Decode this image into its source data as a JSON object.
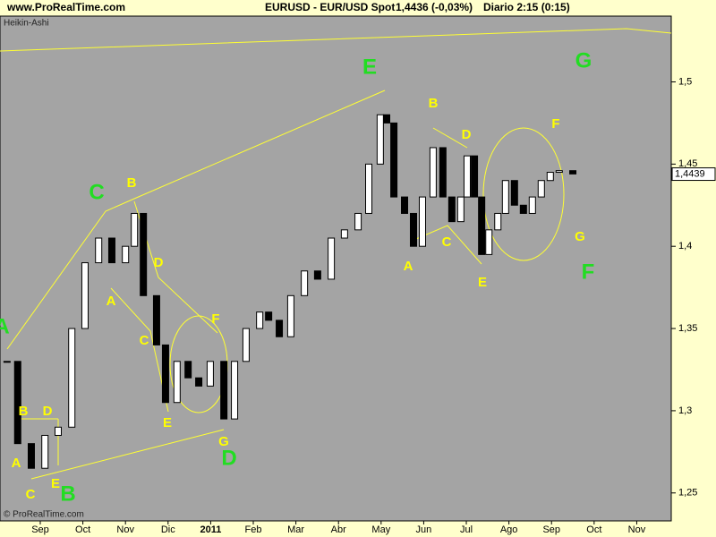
{
  "header": {
    "site": "www.ProRealTime.com",
    "instrument": "EURUSD - EUR/USD Spot",
    "quote": "1,4436 (-0,03%)",
    "period": "Diario  2:15 (0:15)"
  },
  "chart_data": {
    "type": "candlestick",
    "subtitle": "Heikin-Ashi",
    "footer": "© ProRealTime.com",
    "x": [
      -0.78,
      -0.53,
      -0.21,
      0.11,
      0.42,
      0.74,
      1.05,
      1.37,
      1.68,
      2.0,
      2.21,
      2.42,
      2.73,
      2.94,
      3.21,
      3.47,
      3.72,
      3.99,
      4.31,
      4.56,
      4.83,
      5.15,
      5.36,
      5.61,
      5.88,
      6.2,
      6.51,
      6.83,
      7.14,
      7.46,
      7.71,
      7.98,
      8.13,
      8.3,
      8.55,
      8.76,
      8.97,
      9.22,
      9.45,
      9.66,
      9.87,
      10.02,
      10.19,
      10.36,
      10.53,
      10.74,
      10.92,
      11.13,
      11.34,
      11.55,
      11.76,
      11.97,
      12.18,
      12.5
    ],
    "values": [
      1.33,
      1.28,
      1.265,
      1.285,
      1.29,
      1.35,
      1.39,
      1.405,
      1.39,
      1.4,
      1.42,
      1.37,
      1.34,
      1.305,
      1.33,
      1.32,
      1.315,
      1.33,
      1.295,
      1.33,
      1.35,
      1.36,
      1.355,
      1.345,
      1.37,
      1.385,
      1.38,
      1.405,
      1.41,
      1.42,
      1.45,
      1.48,
      1.475,
      1.43,
      1.42,
      1.4,
      1.43,
      1.46,
      1.43,
      1.415,
      1.43,
      1.455,
      1.43,
      1.395,
      1.41,
      1.42,
      1.44,
      1.425,
      1.42,
      1.43,
      1.44,
      1.445,
      1.446,
      1.444
    ],
    "last_value": 1.4439,
    "last_value_label": "1,4439",
    "xlim": [
      -0.945,
      14.81
    ],
    "ylim": [
      1.233,
      1.54
    ],
    "xticks": [
      {
        "value": 0,
        "label": "Sep"
      },
      {
        "value": 1,
        "label": "Oct"
      },
      {
        "value": 2,
        "label": "Nov"
      },
      {
        "value": 3,
        "label": "Dic"
      },
      {
        "value": 4,
        "label": "2011"
      },
      {
        "value": 5,
        "label": "Feb"
      },
      {
        "value": 6,
        "label": "Mar"
      },
      {
        "value": 7,
        "label": "Abr"
      },
      {
        "value": 8,
        "label": "May"
      },
      {
        "value": 9,
        "label": "Jun"
      },
      {
        "value": 10,
        "label": "Jul"
      },
      {
        "value": 11,
        "label": "Ago"
      },
      {
        "value": 12,
        "label": "Sep"
      },
      {
        "value": 13,
        "label": "Oct"
      },
      {
        "value": 14,
        "label": "Nov"
      }
    ],
    "yticks": [
      {
        "value": 1.25,
        "label": "1,25"
      },
      {
        "value": 1.3,
        "label": "1,3"
      },
      {
        "value": 1.35,
        "label": "1,35"
      },
      {
        "value": 1.4,
        "label": "1,4"
      },
      {
        "value": 1.45,
        "label": "1,45"
      },
      {
        "value": 1.5,
        "label": "1,5"
      }
    ],
    "annotations": [
      {
        "text": "A",
        "color": "#ffff00"
      },
      {
        "text": "B",
        "color": "#ffff00"
      },
      {
        "text": "D",
        "color": "#ffff00"
      },
      {
        "text": "C",
        "color": "#ffff00"
      },
      {
        "text": "E",
        "color": "#ffff00"
      },
      {
        "text": "A",
        "color": "#ffff00"
      },
      {
        "text": "B",
        "color": "#ffff00"
      },
      {
        "text": "D",
        "color": "#ffff00"
      },
      {
        "text": "C",
        "color": "#ffff00"
      },
      {
        "text": "E",
        "color": "#ffff00"
      },
      {
        "text": "F",
        "color": "#ffff00"
      },
      {
        "text": "G",
        "color": "#ffff00"
      },
      {
        "text": "B",
        "color": "#ffff00"
      },
      {
        "text": "D",
        "color": "#ffff00"
      },
      {
        "text": "F",
        "color": "#ffff00"
      },
      {
        "text": "A",
        "color": "#ffff00"
      },
      {
        "text": "C",
        "color": "#ffff00"
      },
      {
        "text": "E",
        "color": "#ffff00"
      },
      {
        "text": "G",
        "color": "#ffff00"
      },
      {
        "text": "A",
        "color": "#22dd22"
      },
      {
        "text": "C",
        "color": "#22dd22"
      },
      {
        "text": "B",
        "color": "#22dd22"
      },
      {
        "text": "D",
        "color": "#22dd22"
      },
      {
        "text": "E",
        "color": "#22dd22"
      },
      {
        "text": "G",
        "color": "#22dd22"
      },
      {
        "text": "F",
        "color": "#22dd22"
      }
    ]
  }
}
